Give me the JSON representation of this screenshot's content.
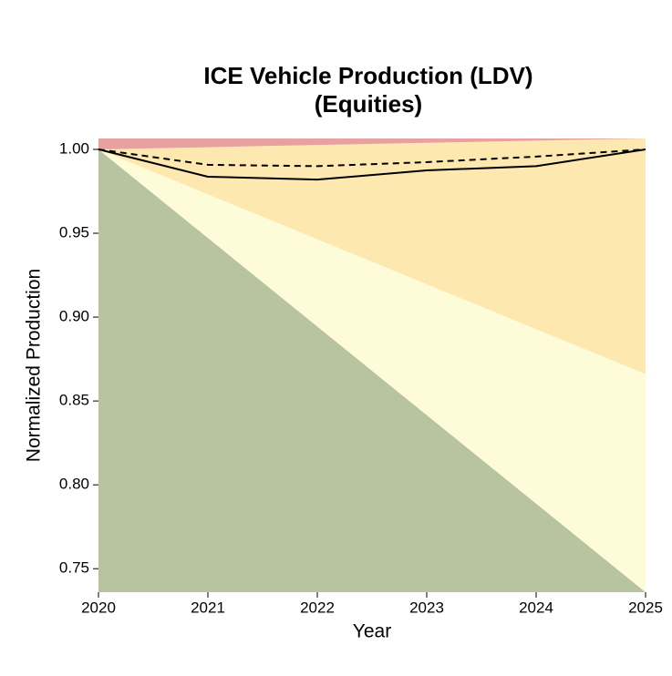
{
  "chart_data": {
    "type": "area",
    "title": [
      "ICE Vehicle Production (LDV)",
      "(Equities)"
    ],
    "x_label": "Year",
    "y_label": "Normalized Production",
    "x": [
      2020,
      2021,
      2022,
      2023,
      2024,
      2025
    ],
    "xlim": [
      2020,
      2025
    ],
    "xticks": [
      2020,
      2021,
      2022,
      2023,
      2024,
      2025
    ],
    "ylim": [
      0.736,
      1.0065
    ],
    "yticks": [
      0.75,
      {
        "value": 0.8,
        "label": "0.80"
      },
      0.85,
      {
        "value": 0.9,
        "label": "0.90"
      },
      0.95,
      {
        "value": 1,
        "label": "1.00"
      }
    ],
    "grid": false,
    "areas": [
      {
        "color": "#b8c4a0",
        "values": [
          1.0,
          0.9472,
          0.8944,
          0.8416,
          0.7888,
          0.736
        ]
      },
      {
        "color": "#fefcd8",
        "values": [
          1.0,
          0.9732,
          0.9464,
          0.9196,
          0.8928,
          0.866
        ]
      },
      {
        "color": "#fde9b0",
        "values": [
          1.0,
          1.0013,
          1.0026,
          1.0039,
          1.0052,
          1.0065
        ]
      },
      {
        "color": "#e8a0a0",
        "values": [
          1.0065,
          1.0065,
          1.0065,
          1.0065,
          1.0065,
          1.0065
        ]
      }
    ],
    "series": [
      {
        "color": "#000000",
        "dash": false,
        "values": [
          1.0,
          0.9837,
          0.982,
          0.9875,
          0.99,
          1.0
        ]
      },
      {
        "color": "#000000",
        "dash": true,
        "values": [
          1.0,
          0.9908,
          0.99,
          0.9924,
          0.9957,
          1.0
        ]
      }
    ]
  }
}
